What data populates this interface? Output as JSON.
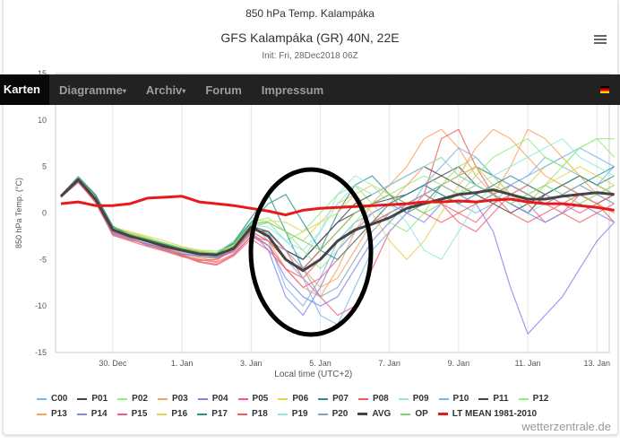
{
  "header": {
    "title": "850 hPa Temp. Kalampáka",
    "subtitle": "GFS Kalampáka (GR) 40N, 22E",
    "init": "Init: Fri, 28Dec2018 06Z",
    "menu_icon": "hamburger-icon"
  },
  "nav": {
    "items": [
      "Karten",
      "Diagramme",
      "Archiv",
      "Forum",
      "Impressum"
    ],
    "caret": "▾",
    "flag_icon": "german-flag-icon"
  },
  "credit": "wetterzentrale.de",
  "chart_data": {
    "type": "line",
    "title": "850 hPa Temp. Kalampáka",
    "xlabel": "Local time (UTC+2)",
    "ylabel": "850 hPa Temp. (°C)",
    "ylim": [
      -15,
      15
    ],
    "yticks": [
      15,
      10,
      5,
      0,
      -5,
      -10,
      -15
    ],
    "x_start": "28 Dec 12Z",
    "x_step_hours": 12,
    "xticks": [
      {
        "label": "30. Dec",
        "day": 1.5
      },
      {
        "label": "1. Jan",
        "day": 3.5
      },
      {
        "label": "3. Jan",
        "day": 5.5
      },
      {
        "label": "5. Jan",
        "day": 7.5
      },
      {
        "label": "7. Jan",
        "day": 9.5
      },
      {
        "label": "9. Jan",
        "day": 11.5
      },
      {
        "label": "11. Jan",
        "day": 13.5
      },
      {
        "label": "13. Jan",
        "day": 15.5
      }
    ],
    "grid": true,
    "legend": "bottom",
    "annotation": "hand-drawn black ellipse around 3–6 Jan",
    "series": [
      {
        "name": "C00",
        "color": "#7cb5ec",
        "values": [
          1.7,
          3.4,
          1.2,
          -2.2,
          -2.4,
          -3.2,
          -3.8,
          -4.2,
          -4.6,
          -4.3,
          -3,
          -1,
          -3,
          -8,
          -10,
          -7,
          -3,
          -1,
          0,
          1,
          2,
          3,
          2,
          1,
          0,
          1,
          3,
          4,
          6,
          5,
          4,
          3,
          5
        ]
      },
      {
        "name": "P01",
        "color": "#434348",
        "values": [
          1.8,
          3.6,
          1.6,
          -1.8,
          -2.6,
          -3,
          -3.4,
          -3.9,
          -4.2,
          -4.8,
          -3.9,
          -1.8,
          -2,
          -4,
          -5,
          -3,
          -1,
          0,
          1,
          1.5,
          2,
          3,
          4,
          5,
          3,
          2,
          1,
          0,
          2,
          3,
          4,
          3,
          2
        ]
      },
      {
        "name": "P02",
        "color": "#90ed7d",
        "values": [
          1.9,
          3.8,
          1.4,
          -2,
          -2.8,
          -3.4,
          -4,
          -4.5,
          -5,
          -4.6,
          -3,
          -0.5,
          -1,
          -3,
          -2,
          0,
          2,
          3,
          1,
          -1,
          -2,
          0,
          3,
          5,
          6,
          4,
          2,
          1,
          3,
          5,
          7,
          8,
          6
        ]
      },
      {
        "name": "P03",
        "color": "#f7a35c",
        "values": [
          1.8,
          3.5,
          1.8,
          -1.5,
          -2.2,
          -2.8,
          -3.6,
          -4.3,
          -4.8,
          -5.2,
          -3.6,
          -2,
          -3,
          -6,
          -8,
          -9,
          -6,
          -2,
          1,
          3,
          5,
          8,
          9,
          7,
          4,
          2,
          5,
          9,
          8,
          6,
          4,
          2,
          1
        ]
      },
      {
        "name": "P04",
        "color": "#8085e9",
        "values": [
          1.7,
          3.3,
          1.3,
          -2.1,
          -2.7,
          -3.5,
          -3.9,
          -4.4,
          -4.7,
          -4.9,
          -4,
          -2,
          -4,
          -9,
          -11,
          -8,
          -4,
          -2,
          0,
          1,
          0,
          -1,
          1,
          2,
          1,
          -2,
          -8,
          -13,
          -11,
          -9,
          -6,
          -3,
          -1
        ]
      },
      {
        "name": "P05",
        "color": "#f15c80",
        "values": [
          1.8,
          3.7,
          1.5,
          -1.9,
          -2.3,
          -3.1,
          -3.7,
          -4.6,
          -5.2,
          -5.5,
          -4.5,
          -2.5,
          -3,
          -4,
          -7,
          -9,
          -11,
          -10,
          -6,
          -2,
          0,
          2,
          1,
          -1,
          -2,
          0,
          2,
          1,
          -1,
          0,
          2,
          1,
          0
        ]
      },
      {
        "name": "P06",
        "color": "#e4d354",
        "values": [
          1.8,
          3.6,
          1.7,
          -1.6,
          -2.1,
          -2.6,
          -3.3,
          -3.8,
          -4.1,
          -4.4,
          -3.7,
          -1.5,
          -1,
          -2,
          -3,
          -1,
          1,
          2,
          0,
          -3,
          -5,
          -3,
          0,
          3,
          5,
          4,
          2,
          3,
          5,
          6,
          4,
          3,
          2
        ]
      },
      {
        "name": "P07",
        "color": "#2b908f",
        "values": [
          1.9,
          3.9,
          2,
          -1.4,
          -2.4,
          -2.9,
          -3.4,
          -4.1,
          -4.5,
          -4.3,
          -3.2,
          -0.5,
          2,
          -2,
          -6,
          -4,
          0,
          3,
          4,
          2,
          0,
          1,
          3,
          4,
          5,
          4,
          3,
          2,
          1,
          2,
          3,
          4,
          5
        ]
      },
      {
        "name": "P08",
        "color": "#f45b5b",
        "values": [
          1.7,
          3.4,
          1.1,
          -2.3,
          -2.9,
          -3.3,
          -3.8,
          -4.5,
          -5,
          -5.3,
          -4.4,
          -2.5,
          -3.5,
          -6,
          -7,
          -5,
          -3,
          -2,
          -1,
          0,
          1,
          2,
          8,
          9,
          5,
          2,
          0,
          -1,
          0,
          1,
          2,
          1,
          -1
        ]
      },
      {
        "name": "P09",
        "color": "#91e8e1",
        "values": [
          1.8,
          3.5,
          1.4,
          -2,
          -2.6,
          -3.2,
          -3.6,
          -4.2,
          -4.4,
          -4.6,
          -3.8,
          -1.5,
          -1,
          -3,
          -5,
          -2,
          2,
          4,
          3,
          1,
          -1,
          -4,
          -5,
          -2,
          1,
          3,
          2,
          0,
          1,
          2,
          3,
          2,
          1
        ]
      },
      {
        "name": "P10",
        "color": "#7cb5ec",
        "values": [
          1.8,
          3.6,
          1.5,
          -1.8,
          -2.5,
          -3,
          -3.5,
          -3.9,
          -4.3,
          -4.5,
          -3.9,
          -1.5,
          -2.5,
          -5,
          -7,
          -11,
          -12,
          -8,
          -4,
          -2,
          0,
          3,
          5,
          7,
          6,
          4,
          3,
          4,
          5,
          6,
          7,
          6,
          5
        ]
      },
      {
        "name": "P11",
        "color": "#434348",
        "values": [
          1.8,
          3.7,
          1.6,
          -1.7,
          -2.4,
          -2.9,
          -3.4,
          -3.9,
          -4.4,
          -4.6,
          -3.6,
          -1.4,
          -2,
          -4,
          -5,
          -3,
          -1,
          1,
          2,
          3,
          4,
          5,
          4,
          3,
          2,
          1,
          0,
          1,
          2,
          3,
          2,
          1,
          2
        ]
      },
      {
        "name": "P12",
        "color": "#90ed7d",
        "values": [
          1.9,
          3.8,
          1.7,
          -1.6,
          -2.2,
          -2.7,
          -3.2,
          -3.7,
          -4,
          -4.1,
          -3.4,
          -1,
          -0.5,
          -2,
          -4,
          -6,
          -4,
          -1,
          1,
          2,
          3,
          4,
          3,
          2,
          4,
          6,
          7,
          8,
          6,
          5,
          7,
          8,
          8
        ]
      },
      {
        "name": "P13",
        "color": "#f7a35c",
        "values": [
          1.8,
          3.5,
          1.5,
          -2,
          -2.6,
          -3.1,
          -3.7,
          -4.3,
          -4.7,
          -4.9,
          -4.1,
          -2,
          -3,
          -5,
          -6,
          -8,
          -7,
          -4,
          -1,
          1,
          3,
          5,
          6,
          4,
          7,
          9,
          8,
          6,
          4,
          3,
          2,
          1,
          0
        ]
      },
      {
        "name": "P14",
        "color": "#8085e9",
        "values": [
          1.7,
          3.4,
          1.3,
          -2.2,
          -2.8,
          -3.3,
          -3.9,
          -4.4,
          -4.6,
          -4.8,
          -4.2,
          -2.2,
          -3.5,
          -7,
          -9,
          -10,
          -9,
          -6,
          -3,
          -1,
          1,
          2,
          3,
          4,
          3,
          2,
          1,
          0,
          -1,
          0,
          1,
          0,
          -1
        ]
      },
      {
        "name": "P15",
        "color": "#f15c80",
        "values": [
          1.8,
          3.6,
          1.4,
          -2,
          -2.7,
          -3.4,
          -4,
          -4.6,
          -5.3,
          -5.6,
          -4.6,
          -2.8,
          -4,
          -6,
          -8,
          -7,
          -5,
          -3,
          -1,
          0,
          1,
          2,
          1,
          0,
          -1,
          1,
          2,
          3,
          2,
          1,
          0,
          1,
          2
        ]
      },
      {
        "name": "P16",
        "color": "#e4d354",
        "values": [
          1.8,
          3.7,
          1.8,
          -1.5,
          -2,
          -2.5,
          -3,
          -3.6,
          -4,
          -4.3,
          -3.5,
          -1.2,
          -0.8,
          -1,
          -2,
          -1,
          0,
          2,
          3,
          2,
          1,
          2,
          3,
          4,
          5,
          3,
          2,
          1,
          3,
          4,
          5,
          4,
          3
        ]
      },
      {
        "name": "P17",
        "color": "#2b908f",
        "values": [
          1.9,
          3.9,
          1.9,
          -1.5,
          -2.3,
          -2.8,
          -3.3,
          -3.8,
          -4.2,
          -4.4,
          -3.3,
          -1,
          1,
          2,
          -1,
          -4,
          -5,
          -3,
          -1,
          1,
          2,
          3,
          2,
          1,
          2,
          3,
          4,
          3,
          2,
          3,
          4,
          3,
          4
        ]
      },
      {
        "name": "P18",
        "color": "#f45b5b",
        "values": [
          1.7,
          3.3,
          1.2,
          -2.4,
          -3,
          -3.6,
          -4.1,
          -4.7,
          -5.1,
          -5,
          -4,
          -2,
          -3,
          -5,
          -6,
          -4,
          -2,
          0,
          1,
          2,
          1,
          0,
          -1,
          0,
          1,
          2,
          3,
          2,
          1,
          0,
          -1,
          0,
          1
        ]
      },
      {
        "name": "P19",
        "color": "#91e8e1",
        "values": [
          1.8,
          3.5,
          1.6,
          -1.8,
          -2.4,
          -2.9,
          -3.5,
          -4,
          -4.4,
          -4.5,
          -3.7,
          -1.3,
          -1.5,
          -3,
          -4,
          -2,
          1,
          3,
          2,
          3,
          4,
          5,
          6,
          4,
          3,
          4,
          5,
          6,
          7,
          8,
          6,
          5,
          4
        ]
      },
      {
        "name": "P20",
        "color": "#8aa0b8",
        "values": [
          1.8,
          3.6,
          1.5,
          -1.9,
          -2.5,
          -3,
          -3.6,
          -4.1,
          -4.5,
          -4.7,
          -3.9,
          -1.6,
          -2.2,
          -4,
          -6,
          -9,
          -8,
          -5,
          -2,
          0,
          1,
          2,
          3,
          2,
          1,
          2,
          3,
          2,
          1,
          2,
          3,
          2,
          1
        ]
      },
      {
        "name": "AVG",
        "color": "#444444",
        "bold": true,
        "values": [
          1.8,
          3.6,
          1.5,
          -1.8,
          -2.5,
          -3,
          -3.6,
          -4,
          -4.4,
          -4.5,
          -3.8,
          -1.5,
          -2.5,
          -5,
          -6.2,
          -5,
          -3,
          -1.8,
          -1.2,
          -0.5,
          0.5,
          1,
          1.5,
          2,
          2.2,
          2.5,
          2,
          1.5,
          1.5,
          1.8,
          2,
          2.2,
          2
        ]
      },
      {
        "name": "OP",
        "color": "#7ed36b",
        "values": [
          1.9,
          3.8,
          1.6,
          -1.7,
          -2.3,
          -2.8,
          -3.3,
          -3.8,
          -4.2,
          -4.3,
          -3.4,
          -1.2,
          -1,
          -2,
          -3,
          -4,
          -2,
          0,
          1,
          2,
          1,
          0,
          1,
          2,
          3,
          2,
          1,
          2,
          3,
          2,
          1,
          2,
          3
        ]
      },
      {
        "name": "LT MEAN 1981-2010",
        "color": "#e8191a",
        "bold": true,
        "values": [
          1,
          1.2,
          0.8,
          0.8,
          1,
          1.6,
          1.7,
          1.8,
          1.2,
          1,
          0.8,
          0.5,
          0.2,
          -0.2,
          0.3,
          0.5,
          0.6,
          0.7,
          0.8,
          0.9,
          1,
          1.2,
          1.2,
          1.3,
          1.2,
          1.4,
          1.5,
          1.2,
          1,
          1,
          0.8,
          0.6,
          0.3
        ]
      }
    ]
  }
}
